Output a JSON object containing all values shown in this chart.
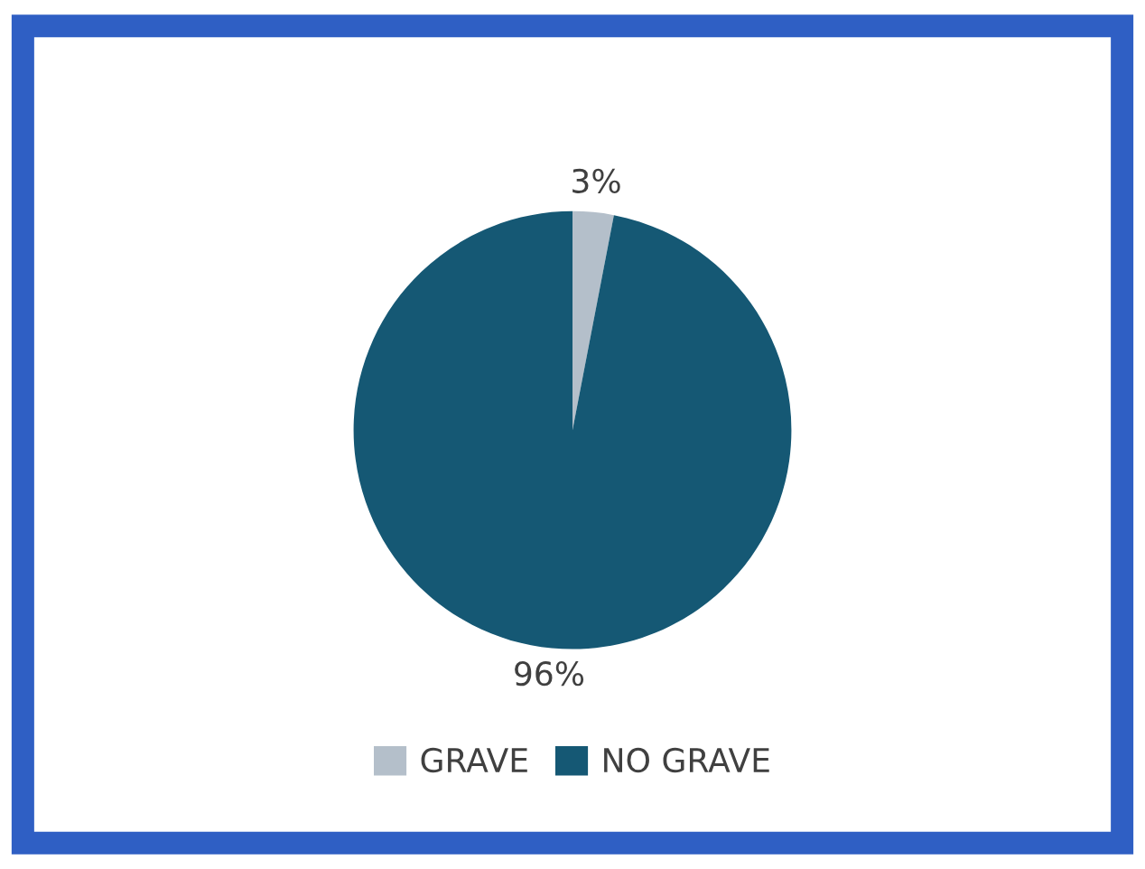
{
  "chart_data": {
    "type": "pie",
    "categories": [
      "GRAVE",
      "NO GRAVE"
    ],
    "values": [
      3,
      96
    ],
    "value_labels": [
      "3%",
      "96%"
    ],
    "colors": [
      "#b4bfca",
      "#155874"
    ],
    "legend": "bottom"
  }
}
